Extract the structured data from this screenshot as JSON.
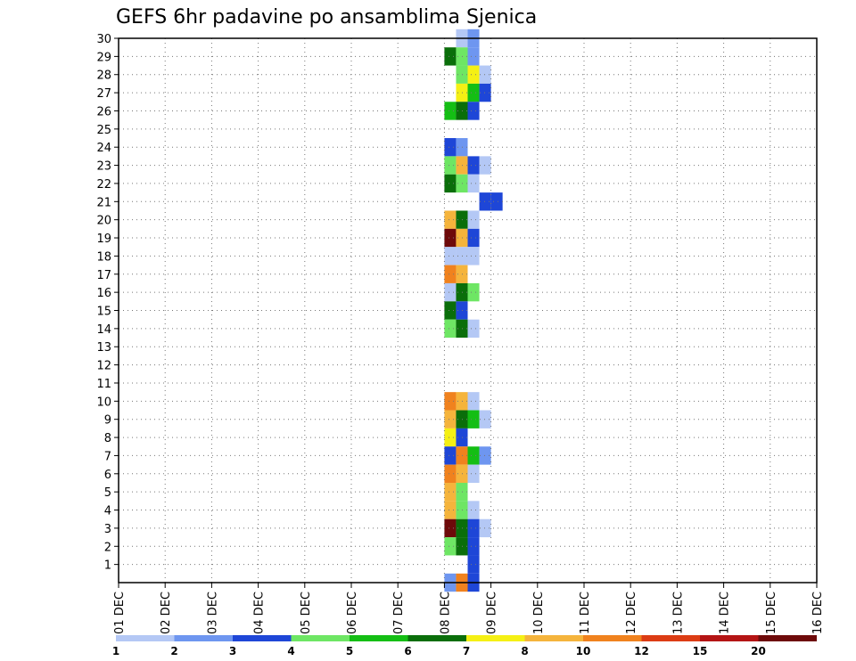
{
  "chart_data": {
    "type": "heatmap",
    "title": "GEFS 6hr padavine po ansamblima Sjenica",
    "xlabel": "",
    "ylabel": "",
    "x_tick_labels": [
      "01 DEC",
      "02 DEC",
      "03 DEC",
      "04 DEC",
      "05 DEC",
      "06 DEC",
      "07 DEC",
      "08 DEC",
      "09 DEC",
      "10 DEC",
      "11 DEC",
      "12 DEC",
      "13 DEC",
      "14 DEC",
      "15 DEC",
      "16 DEC"
    ],
    "y_tick_labels": [
      "1",
      "2",
      "3",
      "4",
      "5",
      "6",
      "7",
      "8",
      "9",
      "10",
      "11",
      "12",
      "13",
      "14",
      "15",
      "16",
      "17",
      "18",
      "19",
      "20",
      "21",
      "22",
      "23",
      "24",
      "25",
      "26",
      "27",
      "28",
      "29",
      "30"
    ],
    "x_range_days": [
      0,
      15
    ],
    "y_range_members": [
      0,
      30
    ],
    "time_step_hours": 6,
    "grid": "dotted",
    "colorbar": {
      "labels": [
        "1",
        "2",
        "3",
        "4",
        "5",
        "6",
        "7",
        "8",
        "10",
        "12",
        "15",
        "20"
      ],
      "colors": [
        "#b4c8f5",
        "#6e96f0",
        "#1e46d7",
        "#6ee664",
        "#14be14",
        "#0a6e0a",
        "#f5f014",
        "#f5b43c",
        "#f0821e",
        "#dc3c14",
        "#b41414",
        "#6e0a0a"
      ]
    },
    "cells": [
      [
        3,
        29,
        30,
        0
      ],
      [
        3,
        30,
        30,
        1
      ],
      [
        3,
        28,
        29,
        5
      ],
      [
        3,
        29,
        29,
        3
      ],
      [
        3,
        30,
        29,
        1
      ],
      [
        3,
        29,
        28,
        3
      ],
      [
        3,
        30,
        28,
        6
      ],
      [
        3,
        31,
        28,
        0
      ],
      [
        3,
        29,
        27,
        6
      ],
      [
        3,
        30,
        27,
        4
      ],
      [
        3,
        31,
        27,
        2
      ],
      [
        3,
        28,
        26,
        4
      ],
      [
        3,
        29,
        26,
        5
      ],
      [
        3,
        30,
        26,
        2
      ],
      [
        3,
        28,
        24,
        2
      ],
      [
        3,
        29,
        24,
        1
      ],
      [
        3,
        28,
        23,
        3
      ],
      [
        3,
        29,
        23,
        7
      ],
      [
        3,
        30,
        23,
        2
      ],
      [
        3,
        31,
        23,
        0
      ],
      [
        3,
        28,
        22,
        5
      ],
      [
        3,
        29,
        22,
        3
      ],
      [
        3,
        30,
        22,
        0
      ],
      [
        3,
        31,
        21,
        2
      ],
      [
        3,
        32,
        21,
        2
      ],
      [
        3,
        28,
        20,
        7
      ],
      [
        3,
        29,
        20,
        5
      ],
      [
        3,
        30,
        20,
        0
      ],
      [
        3,
        28,
        19,
        11
      ],
      [
        3,
        29,
        19,
        7
      ],
      [
        3,
        30,
        19,
        2
      ],
      [
        3,
        28,
        18,
        0
      ],
      [
        3,
        29,
        18,
        0
      ],
      [
        3,
        30,
        18,
        0
      ],
      [
        3,
        28,
        17,
        8
      ],
      [
        3,
        29,
        17,
        7
      ],
      [
        3,
        28,
        16,
        0
      ],
      [
        3,
        29,
        16,
        5
      ],
      [
        3,
        30,
        16,
        3
      ],
      [
        3,
        28,
        15,
        5
      ],
      [
        3,
        29,
        15,
        2
      ],
      [
        3,
        28,
        14,
        3
      ],
      [
        3,
        29,
        14,
        5
      ],
      [
        3,
        30,
        14,
        0
      ],
      [
        3,
        28,
        10,
        8
      ],
      [
        3,
        29,
        10,
        7
      ],
      [
        3,
        30,
        10,
        0
      ],
      [
        3,
        28,
        9,
        7
      ],
      [
        3,
        29,
        9,
        5
      ],
      [
        3,
        30,
        9,
        4
      ],
      [
        3,
        31,
        9,
        0
      ],
      [
        3,
        28,
        8,
        6
      ],
      [
        3,
        29,
        8,
        2
      ],
      [
        3,
        28,
        7,
        2
      ],
      [
        3,
        29,
        7,
        8
      ],
      [
        3,
        30,
        7,
        4
      ],
      [
        3,
        31,
        7,
        1
      ],
      [
        3,
        28,
        6,
        8
      ],
      [
        3,
        29,
        6,
        7
      ],
      [
        3,
        30,
        6,
        0
      ],
      [
        3,
        28,
        5,
        7
      ],
      [
        3,
        29,
        5,
        3
      ],
      [
        3,
        28,
        4,
        7
      ],
      [
        3,
        29,
        4,
        3
      ],
      [
        3,
        30,
        4,
        0
      ],
      [
        3,
        28,
        3,
        11
      ],
      [
        3,
        29,
        3,
        5
      ],
      [
        3,
        30,
        3,
        2
      ],
      [
        3,
        31,
        3,
        0
      ],
      [
        3,
        28,
        2,
        3
      ],
      [
        3,
        29,
        2,
        5
      ],
      [
        3,
        30,
        2,
        2
      ],
      [
        3,
        30,
        1,
        2
      ],
      [
        3,
        28,
        0,
        1
      ],
      [
        3,
        29,
        0,
        8
      ],
      [
        3,
        30,
        0,
        2
      ]
    ]
  }
}
